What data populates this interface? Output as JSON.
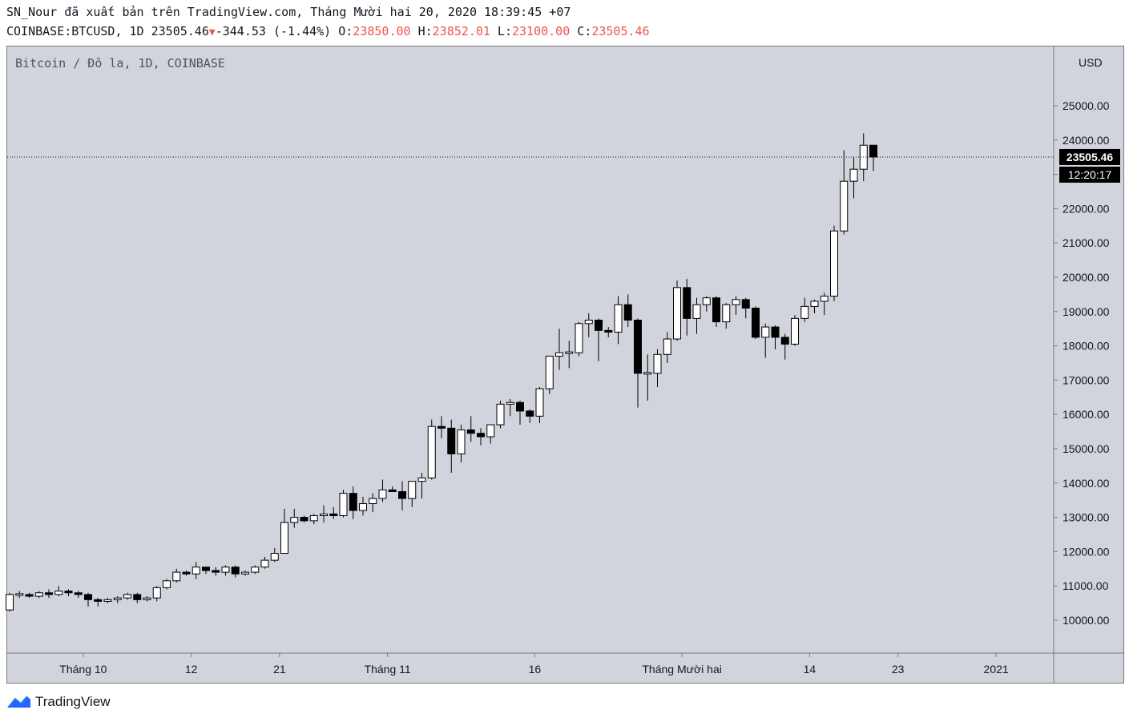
{
  "header": {
    "line1": "SN_Nour đã xuất bản trên TradingView.com, Tháng Mười hai 20, 2020 18:39:45 +07",
    "symbol": "COINBASE:BTCUSD, 1D",
    "last": "23505.46",
    "change": "-344.53",
    "change_pct": "(-1.44%)",
    "o_label": "O:",
    "o_value": "23850.00",
    "h_label": "H:",
    "h_value": "23852.01",
    "l_label": "L:",
    "l_value": "23100.00",
    "c_label": "C:",
    "c_value": "23505.46"
  },
  "chart_label": "Bitcoin / Đô la, 1D, COINBASE",
  "currency": "USD",
  "price_tag": "23505.46",
  "countdown": "12:20:17",
  "brand": "TradingView",
  "colors": {
    "up_fill": "#ffffff",
    "down_fill": "#000000",
    "plot_bg": "#d1d4dc",
    "tag_bg": "#000000",
    "change_red": "#ef5350"
  },
  "chart_data": {
    "type": "candlestick",
    "y_axis": {
      "min": 9000,
      "max": 26500,
      "ticks": [
        10000,
        11000,
        12000,
        13000,
        14000,
        15000,
        16000,
        17000,
        18000,
        19000,
        20000,
        21000,
        22000,
        23000,
        24000,
        25000
      ],
      "tick_labels": [
        "10000.00",
        "11000.00",
        "12000.00",
        "13000.00",
        "14000.00",
        "15000.00",
        "16000.00",
        "17000.00",
        "18000.00",
        "19000.00",
        "20000.00",
        "21000.00",
        "22000.00",
        "23000.00",
        "24000.00",
        "25000.00"
      ]
    },
    "x_axis": {
      "tick_labels": [
        "Tháng 10",
        "12",
        "21",
        "Tháng 11",
        "16",
        "Tháng Mười hai",
        "14",
        "23",
        "2021"
      ],
      "tick_candle_index": [
        7.5,
        18.5,
        27.5,
        38.5,
        53.5,
        68.5,
        81.5,
        90.5,
        100.5
      ]
    },
    "last_price": 23505.46,
    "candles": [
      [
        10300,
        10800,
        10250,
        10750
      ],
      [
        10750,
        10850,
        10650,
        10750
      ],
      [
        10750,
        10800,
        10650,
        10700
      ],
      [
        10700,
        10850,
        10650,
        10800
      ],
      [
        10800,
        10900,
        10650,
        10750
      ],
      [
        10750,
        11000,
        10700,
        10850
      ],
      [
        10850,
        10900,
        10700,
        10800
      ],
      [
        10800,
        10850,
        10650,
        10750
      ],
      [
        10750,
        10800,
        10400,
        10600
      ],
      [
        10600,
        10650,
        10400,
        10550
      ],
      [
        10550,
        10650,
        10500,
        10600
      ],
      [
        10600,
        10700,
        10500,
        10650
      ],
      [
        10650,
        10800,
        10600,
        10750
      ],
      [
        10750,
        10800,
        10500,
        10600
      ],
      [
        10600,
        10700,
        10550,
        10650
      ],
      [
        10650,
        11000,
        10550,
        10950
      ],
      [
        10950,
        11200,
        10900,
        11150
      ],
      [
        11150,
        11500,
        11100,
        11400
      ],
      [
        11400,
        11450,
        11300,
        11350
      ],
      [
        11350,
        11700,
        11200,
        11550
      ],
      [
        11550,
        11550,
        11350,
        11450
      ],
      [
        11450,
        11550,
        11300,
        11400
      ],
      [
        11400,
        11600,
        11300,
        11550
      ],
      [
        11550,
        11600,
        11250,
        11350
      ],
      [
        11350,
        11450,
        11300,
        11400
      ],
      [
        11400,
        11600,
        11350,
        11550
      ],
      [
        11550,
        11850,
        11500,
        11750
      ],
      [
        11750,
        12100,
        11700,
        11950
      ],
      [
        11950,
        13250,
        11950,
        12850
      ],
      [
        12850,
        13250,
        12700,
        13000
      ],
      [
        13000,
        13050,
        12850,
        12900
      ],
      [
        12900,
        13100,
        12800,
        13050
      ],
      [
        13050,
        13350,
        12850,
        13100
      ],
      [
        13100,
        13300,
        12950,
        13050
      ],
      [
        13050,
        13800,
        13000,
        13700
      ],
      [
        13700,
        13900,
        12950,
        13200
      ],
      [
        13200,
        13600,
        13050,
        13400
      ],
      [
        13400,
        13700,
        13150,
        13550
      ],
      [
        13550,
        14100,
        13450,
        13800
      ],
      [
        13800,
        13900,
        13750,
        13750
      ],
      [
        13750,
        14050,
        13200,
        13550
      ],
      [
        13550,
        14000,
        13300,
        14050
      ],
      [
        14050,
        14300,
        13550,
        14150
      ],
      [
        14150,
        15850,
        14100,
        15650
      ],
      [
        15650,
        15950,
        15300,
        15600
      ],
      [
        15600,
        15850,
        14300,
        14850
      ],
      [
        14850,
        15700,
        14600,
        15550
      ],
      [
        15550,
        15950,
        15200,
        15450
      ],
      [
        15450,
        15600,
        15100,
        15350
      ],
      [
        15350,
        15700,
        15150,
        15700
      ],
      [
        15700,
        16400,
        15600,
        16300
      ],
      [
        16300,
        16450,
        15950,
        16350
      ],
      [
        16350,
        16400,
        15700,
        16100
      ],
      [
        16100,
        16150,
        15750,
        15950
      ],
      [
        15950,
        16800,
        15750,
        16750
      ],
      [
        16750,
        17700,
        16600,
        17700
      ],
      [
        17700,
        18500,
        17300,
        17800
      ],
      [
        17800,
        18150,
        17350,
        17800
      ],
      [
        17800,
        18700,
        17700,
        18650
      ],
      [
        18650,
        18950,
        18250,
        18750
      ],
      [
        18750,
        18800,
        17550,
        18450
      ],
      [
        18450,
        18550,
        18250,
        18400
      ],
      [
        18400,
        19450,
        18050,
        19200
      ],
      [
        19200,
        19500,
        18550,
        18750
      ],
      [
        18750,
        18800,
        16200,
        17200
      ],
      [
        17200,
        17750,
        16400,
        17200
      ],
      [
        17200,
        17900,
        16800,
        17750
      ],
      [
        17750,
        18400,
        17500,
        18200
      ],
      [
        18200,
        19900,
        18150,
        19700
      ],
      [
        19700,
        19950,
        18300,
        18800
      ],
      [
        18800,
        19400,
        18350,
        19200
      ],
      [
        19200,
        19450,
        19000,
        19400
      ],
      [
        19400,
        19450,
        18550,
        18700
      ],
      [
        18700,
        19250,
        18500,
        19200
      ],
      [
        19200,
        19450,
        18900,
        19350
      ],
      [
        19350,
        19400,
        18800,
        19100
      ],
      [
        19100,
        19150,
        18200,
        18250
      ],
      [
        18250,
        18650,
        17650,
        18550
      ],
      [
        18550,
        18600,
        17900,
        18250
      ],
      [
        18250,
        18350,
        17600,
        18050
      ],
      [
        18050,
        18900,
        18000,
        18800
      ],
      [
        18800,
        19400,
        18700,
        19150
      ],
      [
        19150,
        19350,
        18950,
        19300
      ],
      [
        19300,
        19550,
        18900,
        19450
      ],
      [
        19450,
        21500,
        19300,
        21350
      ],
      [
        21350,
        23700,
        21250,
        22800
      ],
      [
        22800,
        23500,
        22300,
        23150
      ],
      [
        23150,
        24200,
        22800,
        23850
      ],
      [
        23850,
        23852.01,
        23100,
        23505.46
      ]
    ]
  }
}
